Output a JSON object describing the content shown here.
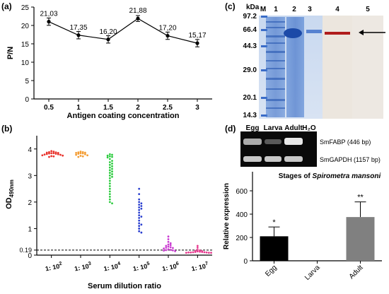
{
  "panels": {
    "a": {
      "label": "(a)"
    },
    "b": {
      "label": "(b)"
    },
    "c": {
      "label": "(c)"
    },
    "d": {
      "label": "(d)"
    }
  },
  "chart_data": [
    {
      "id": "a",
      "type": "line",
      "x": [
        0.5,
        1,
        1.5,
        2,
        2.5,
        3
      ],
      "y": [
        21.03,
        17.35,
        16.2,
        21.88,
        17.2,
        15.17
      ],
      "error": [
        1.0,
        1.0,
        1.0,
        0.8,
        1.0,
        1.0
      ],
      "data_labels": [
        "21,03",
        "17,35",
        "16,20",
        "21,88",
        "17,20",
        "15,17"
      ],
      "xlabel": "Antigen coating concentration",
      "ylabel": "P/N",
      "ylim": [
        0,
        25
      ],
      "yticks": [
        "0",
        "5",
        "10",
        "15",
        "20",
        "25"
      ],
      "xticks": [
        "0.5",
        "1",
        "1.5",
        "2",
        "2.5",
        "3"
      ],
      "grid": false
    },
    {
      "id": "b",
      "type": "scatter",
      "categories": [
        "1: 10",
        "1: 10",
        "1: 10",
        "1: 10",
        "1: 10",
        "1: 10"
      ],
      "exponents": [
        "2",
        "3",
        "4",
        "5",
        "6",
        "7"
      ],
      "series": [
        {
          "category": 0,
          "color": "#e8322b",
          "values": [
            3.92,
            3.9,
            3.88,
            3.87,
            3.86,
            3.85,
            3.84,
            3.84,
            3.83,
            3.82,
            3.81,
            3.8,
            3.79,
            3.78,
            3.76,
            3.75,
            3.73,
            3.72,
            3.7
          ]
        },
        {
          "category": 1,
          "color": "#f39c32",
          "values": [
            3.9,
            3.88,
            3.87,
            3.86,
            3.85,
            3.84,
            3.83,
            3.82,
            3.8,
            3.78,
            3.76,
            3.74,
            3.72,
            3.7
          ]
        },
        {
          "category": 2,
          "color": "#2ecc40",
          "values": [
            3.8,
            3.78,
            3.75,
            3.72,
            3.7,
            3.68,
            3.62,
            3.55,
            3.5,
            3.45,
            3.4,
            3.35,
            3.3,
            3.25,
            3.2,
            3.15,
            3.1,
            3.05,
            3.0,
            2.95,
            2.9,
            2.8,
            2.7,
            2.6,
            2.5,
            2.4,
            2.3,
            2.2,
            2.1,
            2.0,
            1.95
          ]
        },
        {
          "category": 3,
          "color": "#2a3fcf",
          "values": [
            2.5,
            2.3,
            2.1,
            2.0,
            1.95,
            1.9,
            1.85,
            1.8,
            1.75,
            1.7,
            1.6,
            1.5,
            1.45,
            1.4,
            1.3,
            1.2,
            1.15,
            1.1,
            1.0,
            0.9,
            0.85
          ]
        },
        {
          "category": 4,
          "color": "#c93ad1",
          "values": [
            0.7,
            0.6,
            0.5,
            0.45,
            0.4,
            0.38,
            0.35,
            0.32,
            0.3,
            0.28,
            0.27,
            0.25,
            0.22,
            0.2,
            0.19,
            0.18,
            0.17,
            0.15
          ]
        },
        {
          "category": 5,
          "color": "#e8398f",
          "values": [
            0.35,
            0.28,
            0.2,
            0.18,
            0.16,
            0.15,
            0.14,
            0.13,
            0.12,
            0.12,
            0.11,
            0.11,
            0.1,
            0.1,
            0.1,
            0.09,
            0.09,
            0.09
          ]
        }
      ],
      "cutoff": 0.19,
      "cutoff_label": "0.19",
      "xlabel": "Serum dilution ratio",
      "ylabel": "OD",
      "ylabel_sub": "490nm",
      "ylim": [
        0,
        4.5
      ],
      "yticks": [
        "0",
        "1",
        "2",
        "3",
        "4"
      ]
    },
    {
      "id": "c",
      "type": "other",
      "description_kind": "gel",
      "unit_label": "kDa",
      "markers": [
        "97.2",
        "66.4",
        "44.3",
        "29.0",
        "20.1",
        "14.3"
      ],
      "lanes": [
        "M",
        "1",
        "2",
        "3",
        "4",
        "5"
      ]
    },
    {
      "id": "d",
      "type": "bar",
      "gel_lanes": [
        "Egg",
        "Larva",
        "Adult",
        "H₂O"
      ],
      "gel_rows": [
        "SmFABP (446 bp)",
        "SmGAPDH (1157 bp)"
      ],
      "categories": [
        "Egg",
        "Larva",
        "Adult"
      ],
      "values": [
        210,
        0,
        375
      ],
      "error": [
        80,
        0,
        130
      ],
      "significance": [
        "*",
        "",
        "**"
      ],
      "colors": [
        "#000000",
        "#000000",
        "#808080"
      ],
      "xlabel_prefix": "Stages of ",
      "xlabel_italic": "Spirometra mansoni",
      "ylabel": "Relative expression",
      "ylim": [
        0,
        600
      ],
      "yticks": [
        "0",
        "200",
        "400",
        "600"
      ]
    }
  ]
}
